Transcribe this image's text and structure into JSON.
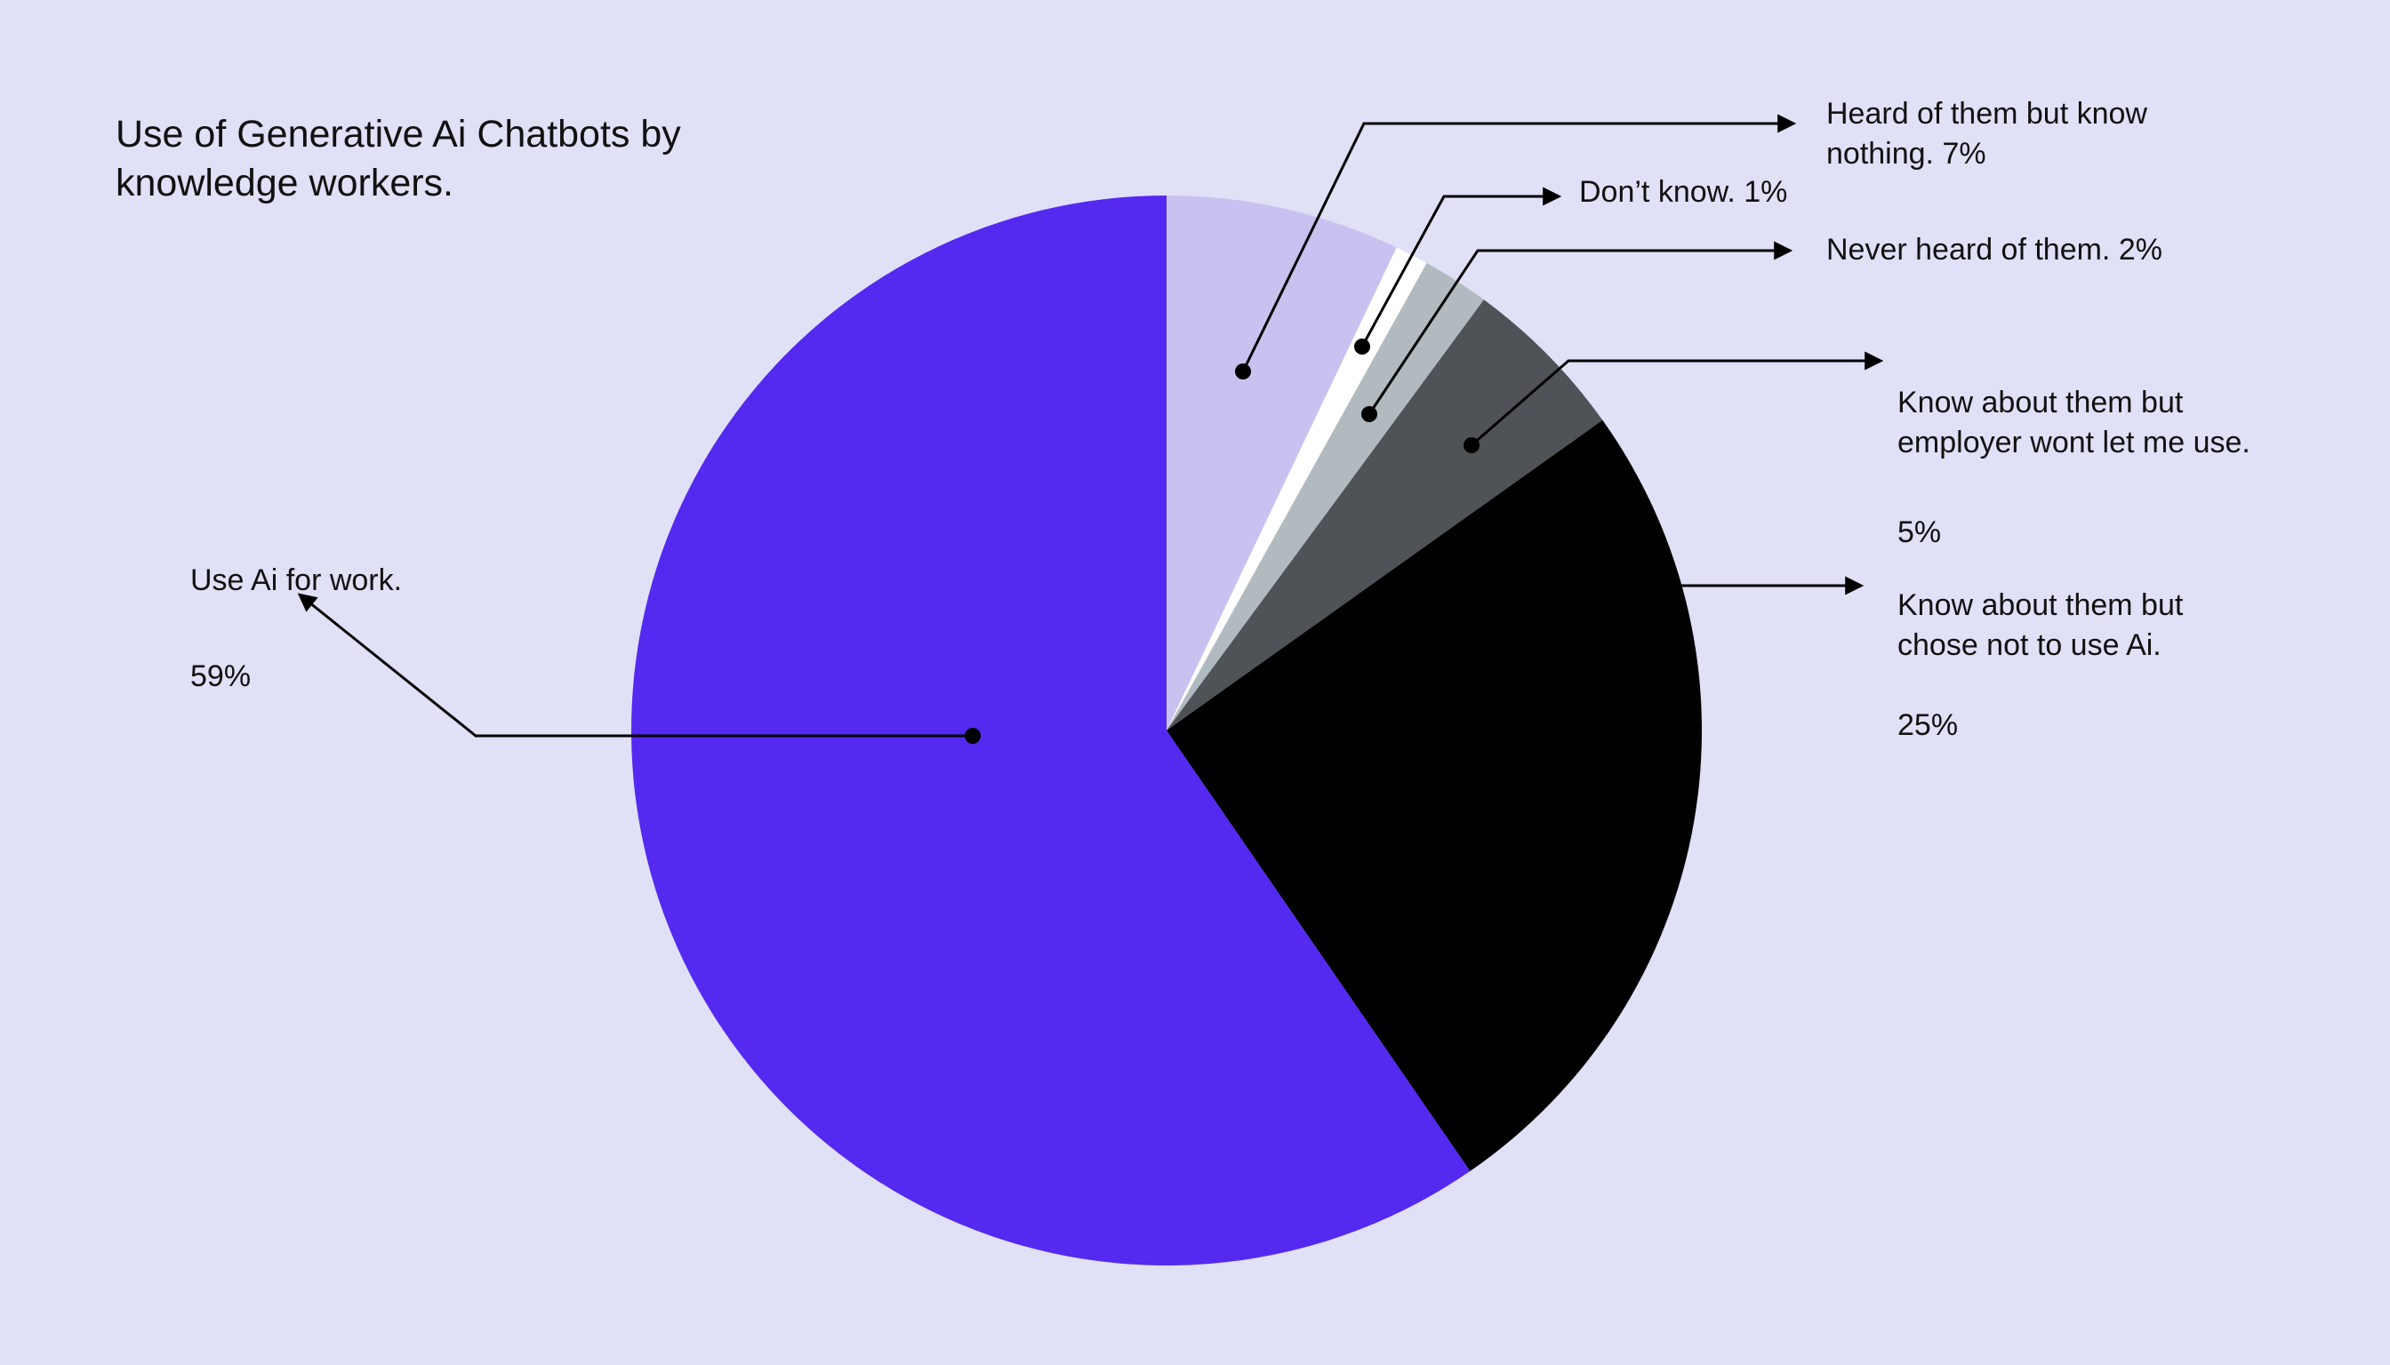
{
  "chart_data": {
    "type": "pie",
    "title": "Use of Generative Ai Chatbots by\nknowledge workers.",
    "slices": [
      {
        "label": "Heard of them but know\nnothing.",
        "pct": "7%",
        "value": 7,
        "color": "#c9c2f0"
      },
      {
        "label": "Don’t know.",
        "pct": "1%",
        "value": 1,
        "color": "#ffffff"
      },
      {
        "label": "Never heard of them.",
        "pct": "2%",
        "value": 2,
        "color": "#b1babf"
      },
      {
        "label": "Know about them but\nemployer wont let me use.",
        "pct": "5%",
        "value": 5,
        "color": "#4f5257"
      },
      {
        "label": "Know about them but\nchose not to use Ai.",
        "pct": "25%",
        "value": 25,
        "color": "#000000"
      },
      {
        "label": "Use Ai for work.",
        "pct": "59%",
        "value": 59,
        "color": "#5429f0"
      }
    ]
  }
}
